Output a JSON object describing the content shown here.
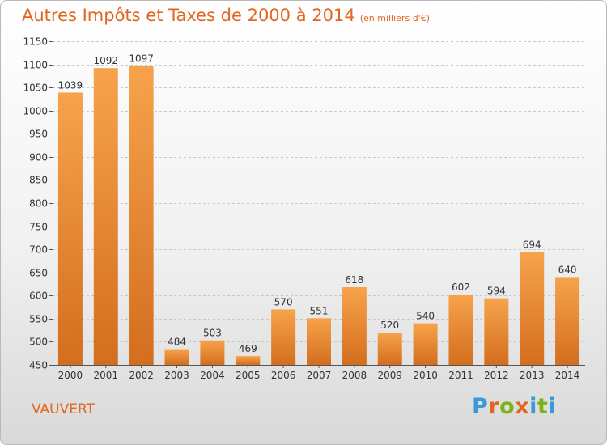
{
  "title": "Autres Impôts et Taxes de 2000 à 2014",
  "unit": "(en milliers d'€)",
  "commune": "VAUVERT",
  "logo": {
    "text": "Proxiti",
    "colors": [
      "#3a9ad9",
      "#e2661f",
      "#7ab317",
      "#e2661f",
      "#3a9ad9",
      "#7ab317",
      "#3a9ad9"
    ]
  },
  "colors": {
    "accent": "#e2661f",
    "bar_light": "#f7a34c",
    "bar_dark": "#d36e1e"
  },
  "chart_data": {
    "type": "bar",
    "categories": [
      "2000",
      "2001",
      "2002",
      "2003",
      "2004",
      "2005",
      "2006",
      "2007",
      "2008",
      "2009",
      "2010",
      "2011",
      "2012",
      "2013",
      "2014"
    ],
    "values": [
      1039,
      1092,
      1097,
      484,
      503,
      469,
      570,
      551,
      618,
      520,
      540,
      602,
      594,
      694,
      640
    ],
    "title": "Autres Impôts et Taxes de 2000 à 2014",
    "ylim": [
      450,
      1150
    ],
    "yticks": [
      450,
      500,
      550,
      600,
      650,
      700,
      750,
      800,
      850,
      900,
      950,
      1000,
      1050,
      1100,
      1150
    ],
    "grid": true
  }
}
